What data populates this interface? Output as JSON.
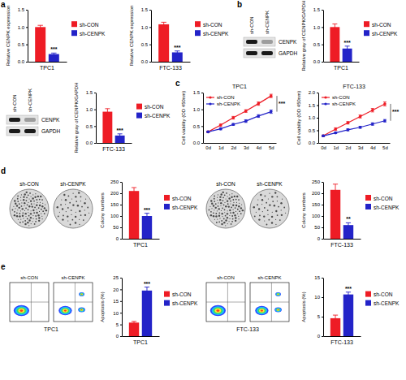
{
  "figure": {
    "panel_labels": [
      "a",
      "b",
      "c",
      "d",
      "e"
    ],
    "blots": [
      {
        "lanes": [
          "sh-CON",
          "sh-CENPK"
        ],
        "bands": [
          "CENPK",
          "GAPDH"
        ]
      },
      {
        "lanes": [
          "sh-CON",
          "sh-CENPK"
        ],
        "bands": [
          "CENPK",
          "GAPDH"
        ]
      }
    ],
    "colony_images": [
      {
        "lanes": [
          "sh-CON",
          "sh-CENPK"
        ]
      },
      {
        "lanes": [
          "sh-CON",
          "sh-CENPK"
        ]
      }
    ],
    "flow_images": [
      {
        "lanes": [
          "sh-CON",
          "sh-CENPK"
        ],
        "label": "TPC1"
      },
      {
        "lanes": [
          "sh-CON",
          "sh-CENPK"
        ],
        "label": "FTC-133"
      }
    ]
  },
  "chart_data": [
    {
      "type": "bar",
      "y_label": "Relative CENPK expression",
      "categories": [
        "TPC1"
      ],
      "series": [
        {
          "name": "sh-CON",
          "color": "#ee1c25",
          "values": [
            1.0
          ],
          "errors": [
            0.05
          ]
        },
        {
          "name": "sh-CENPK",
          "color": "#2323c8",
          "values": [
            0.22
          ],
          "errors": [
            0.03
          ]
        }
      ],
      "ylim": [
        0,
        1.5
      ],
      "yticks": [
        {
          "value": 0,
          "label": "0.0"
        },
        0.5,
        {
          "value": 1,
          "label": "1.0"
        },
        1.5
      ],
      "legend": "right",
      "annotation": "***"
    },
    {
      "type": "bar",
      "y_label": "Relative CENPK expression",
      "categories": [
        "FTC-133"
      ],
      "series": [
        {
          "name": "sh-CON",
          "color": "#ee1c25",
          "values": [
            1.08
          ],
          "errors": [
            0.06
          ]
        },
        {
          "name": "sh-CENPK",
          "color": "#2323c8",
          "values": [
            0.27
          ],
          "errors": [
            0.04
          ]
        }
      ],
      "ylim": [
        0,
        1.5
      ],
      "yticks": [
        {
          "value": 0,
          "label": "0.0"
        },
        0.5,
        {
          "value": 1,
          "label": "1.0"
        },
        1.5
      ],
      "legend": "right",
      "annotation": "***"
    },
    {
      "type": "bar",
      "y_label": "Relative gray of CENPK/GAPDH",
      "categories": [
        "TPC1"
      ],
      "series": [
        {
          "name": "sh-CON",
          "color": "#ee1c25",
          "values": [
            1.0
          ],
          "errors": [
            0.09
          ]
        },
        {
          "name": "sh-CENPK",
          "color": "#2323c8",
          "values": [
            0.38
          ],
          "errors": [
            0.07
          ]
        }
      ],
      "ylim": [
        0,
        1.5
      ],
      "yticks": [
        {
          "value": 0,
          "label": "0.0"
        },
        0.5,
        {
          "value": 1,
          "label": "1.0"
        },
        1.5
      ],
      "legend": "right",
      "annotation": "***"
    },
    {
      "type": "bar",
      "y_label": "Relative gray of CENPK/GAPDH",
      "categories": [
        "FTC-133"
      ],
      "series": [
        {
          "name": "sh-CON",
          "color": "#ee1c25",
          "values": [
            0.93
          ],
          "errors": [
            0.09
          ]
        },
        {
          "name": "sh-CENPK",
          "color": "#2323c8",
          "values": [
            0.22
          ],
          "errors": [
            0.05
          ]
        }
      ],
      "ylim": [
        0,
        1.5
      ],
      "yticks": [
        {
          "value": 0,
          "label": "0.0"
        },
        0.5,
        {
          "value": 1,
          "label": "1.0"
        },
        1.5
      ],
      "legend": "right",
      "annotation": "***"
    },
    {
      "type": "line",
      "title": "TPC1",
      "y_label": "Cell viability (OD 450nm)",
      "categories": [
        "0d",
        "1d",
        "2d",
        "3d",
        "4d",
        "5d"
      ],
      "series": [
        {
          "name": "sh-CON",
          "color": "#ee1c25",
          "values": [
            0.33,
            0.53,
            0.75,
            0.95,
            1.17,
            1.4
          ],
          "errors": [
            0.02,
            0.03,
            0.04,
            0.04,
            0.05,
            0.05
          ]
        },
        {
          "name": "sh-CENPK",
          "color": "#2323c8",
          "values": [
            0.33,
            0.42,
            0.55,
            0.65,
            0.8,
            0.93
          ],
          "errors": [
            0.02,
            0.03,
            0.03,
            0.04,
            0.04,
            0.05
          ]
        }
      ],
      "marker": "circle",
      "ylim": [
        0,
        1.5
      ],
      "yticks": [
        {
          "value": 0,
          "label": "0.0"
        },
        0.5,
        {
          "value": 1,
          "label": "1.0"
        },
        1.5
      ],
      "legend": "top-left",
      "annotation": "***"
    },
    {
      "type": "line",
      "title": "FTC-133",
      "y_label": "Cell viability (OD 450nm)",
      "categories": [
        "0d",
        "1d",
        "2d",
        "3d",
        "4d",
        "5d"
      ],
      "series": [
        {
          "name": "sh-CON",
          "color": "#ee1c25",
          "values": [
            0.28,
            0.55,
            0.8,
            1.05,
            1.3,
            1.55
          ],
          "errors": [
            0.03,
            0.05,
            0.05,
            0.06,
            0.07,
            0.08
          ]
        },
        {
          "name": "sh-CENPK",
          "color": "#2323c8",
          "values": [
            0.28,
            0.4,
            0.52,
            0.62,
            0.75,
            0.88
          ],
          "errors": [
            0.03,
            0.03,
            0.04,
            0.04,
            0.05,
            0.05
          ]
        }
      ],
      "marker": "circle",
      "ylim": [
        0,
        2
      ],
      "yticks": [
        {
          "value": 0,
          "label": "0.0"
        },
        0.5,
        {
          "value": 1,
          "label": "1.0"
        },
        1.5,
        {
          "value": 2,
          "label": "2.0"
        }
      ],
      "legend": "top-left",
      "annotation": "***"
    },
    {
      "type": "bar",
      "y_label": "Colony numbers",
      "categories": [
        "TPC1"
      ],
      "series": [
        {
          "name": "sh-CON",
          "color": "#ee1c25",
          "values": [
            210
          ],
          "errors": [
            15
          ]
        },
        {
          "name": "sh-CENPK",
          "color": "#2323c8",
          "values": [
            100
          ],
          "errors": [
            12
          ]
        }
      ],
      "ylim": [
        0,
        250
      ],
      "yticks": [
        0,
        50,
        100,
        150,
        200,
        250
      ],
      "legend": "right",
      "annotation": "***"
    },
    {
      "type": "bar",
      "y_label": "Colony numbers",
      "categories": [
        "FTC-133"
      ],
      "series": [
        {
          "name": "sh-CON",
          "color": "#ee1c25",
          "values": [
            215
          ],
          "errors": [
            25
          ]
        },
        {
          "name": "sh-CENPK",
          "color": "#2323c8",
          "values": [
            60
          ],
          "errors": [
            10
          ]
        }
      ],
      "ylim": [
        0,
        250
      ],
      "yticks": [
        0,
        50,
        100,
        150,
        200,
        250
      ],
      "legend": "right",
      "annotation": "**"
    },
    {
      "type": "bar",
      "y_label": "Apoptosis (%)",
      "categories": [
        "TPC1"
      ],
      "series": [
        {
          "name": "sh-CON",
          "color": "#ee1c25",
          "values": [
            5.8
          ],
          "errors": [
            0.5
          ]
        },
        {
          "name": "sh-CENPK",
          "color": "#2323c8",
          "values": [
            19.5
          ],
          "errors": [
            1.5
          ]
        }
      ],
      "ylim": [
        0,
        25
      ],
      "yticks": [
        0,
        5,
        10,
        15,
        20,
        25
      ],
      "legend": "right",
      "annotation": "***"
    },
    {
      "type": "bar",
      "y_label": "Apoptosis (%)",
      "categories": [
        "FTC-133"
      ],
      "series": [
        {
          "name": "sh-CON",
          "color": "#ee1c25",
          "values": [
            4.6
          ],
          "errors": [
            0.8
          ]
        },
        {
          "name": "sh-CENPK",
          "color": "#2323c8",
          "values": [
            10.7
          ],
          "errors": [
            0.6
          ]
        }
      ],
      "ylim": [
        0,
        15
      ],
      "yticks": [
        0,
        5,
        10,
        15
      ],
      "legend": "right",
      "annotation": "***"
    }
  ]
}
